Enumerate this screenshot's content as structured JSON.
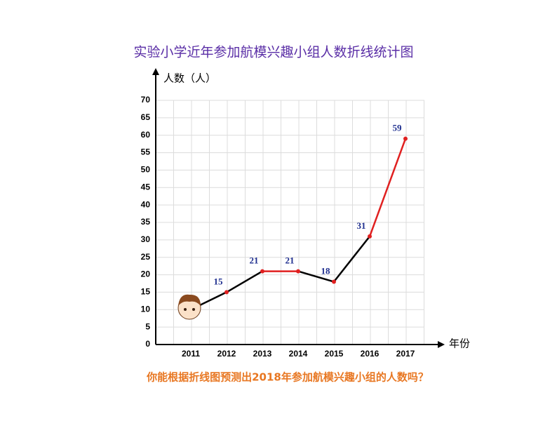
{
  "chart_data": {
    "type": "line",
    "title": "实验小学近年参加航模兴趣小组人数折线统计图",
    "subtitle": "你能根据折线图预测出2018年参加航模兴趣小组的人数吗？",
    "y_label": "人数（人）",
    "x_label": "年份",
    "categories": [
      "2011",
      "2012",
      "2013",
      "2014",
      "2015",
      "2016",
      "2017"
    ],
    "series": [
      {
        "name": "人数",
        "color": "#000000",
        "values": [
          10,
          15,
          21,
          21,
          18,
          31,
          59
        ],
        "value_labels": [
          null,
          "15",
          "21",
          "21",
          "18",
          "31",
          "59"
        ]
      }
    ],
    "segment_colors": [
      "#000000",
      "#000000",
      "#e02020",
      "#000000",
      "#000000",
      "#e02020"
    ],
    "point_color": "#e02020",
    "ylim": [
      0,
      70
    ],
    "yticks": [
      0,
      5,
      10,
      15,
      20,
      25,
      30,
      35,
      40,
      45,
      50,
      55,
      60,
      65,
      70
    ],
    "grid": true
  }
}
